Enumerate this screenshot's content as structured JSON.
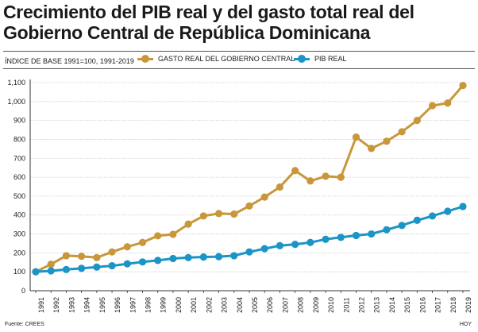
{
  "chart_data": {
    "type": "line",
    "title": "Crecimiento del PIB real y del gasto total real del Gobierno Central de República Dominicana",
    "subtitle": "ÍNDICE DE BASE 1991=100, 1991-2019",
    "categories": [
      "1991",
      "1992",
      "1993",
      "1994",
      "1995",
      "1996",
      "1997",
      "1998",
      "1999",
      "2000",
      "2001",
      "2002",
      "2003",
      "2004",
      "2005",
      "2006",
      "2007",
      "2008",
      "2009",
      "2010",
      "2011",
      "2012",
      "2013",
      "2014",
      "2015",
      "2016",
      "2017",
      "2018",
      "2019"
    ],
    "series": [
      {
        "name": "GASTO REAL DEL GOBIERNO CENTRAL",
        "color": "#c8973a",
        "values": [
          100,
          140,
          185,
          182,
          175,
          205,
          232,
          255,
          290,
          298,
          352,
          395,
          408,
          405,
          448,
          495,
          548,
          635,
          580,
          605,
          600,
          812,
          752,
          790,
          840,
          900,
          978,
          992,
          1085
        ]
      },
      {
        "name": "PIB REAL",
        "color": "#1b95c6",
        "values": [
          100,
          105,
          112,
          118,
          125,
          132,
          142,
          152,
          160,
          170,
          175,
          178,
          180,
          185,
          205,
          222,
          238,
          245,
          255,
          272,
          282,
          292,
          300,
          322,
          345,
          372,
          395,
          420,
          445
        ]
      }
    ],
    "ylim": [
      0,
      1100
    ],
    "yticks": [
      0,
      100,
      200,
      300,
      400,
      500,
      600,
      700,
      800,
      900,
      "1,000",
      "1,100"
    ],
    "grid": true,
    "legend_position": "top"
  },
  "footer": {
    "source": "Fuente: CREES",
    "credit": "HOY"
  }
}
